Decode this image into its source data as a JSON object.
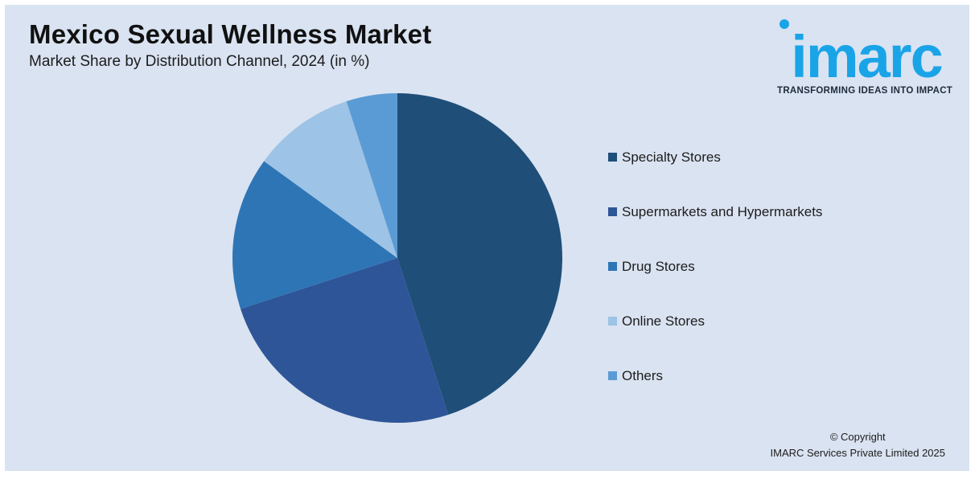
{
  "header": {
    "title": "Mexico Sexual Wellness Market",
    "subtitle": "Market Share by Distribution Channel, 2024 (in %)"
  },
  "logo": {
    "wordmark": "imarc",
    "tagline": "TRANSFORMING IDEAS INTO IMPACT",
    "color": "#1aa4e8"
  },
  "chart_data": {
    "type": "pie",
    "title": "Mexico Sexual Wellness Market",
    "subtitle": "Market Share by Distribution Channel, 2024 (in %)",
    "categories": [
      "Specialty Stores",
      "Supermarkets and Hypermarkets",
      "Drug Stores",
      "Online Stores",
      "Others"
    ],
    "values": [
      45,
      25,
      15,
      10,
      5
    ],
    "colors": [
      "#1f4e79",
      "#2e5597",
      "#2e75b6",
      "#9dc3e6",
      "#5b9bd5"
    ],
    "legend_position": "right",
    "start_angle_deg": 0,
    "direction": "clockwise"
  },
  "footer": {
    "copyright_line1": "© Copyright",
    "copyright_line2": "IMARC Services Private Limited 2025"
  }
}
